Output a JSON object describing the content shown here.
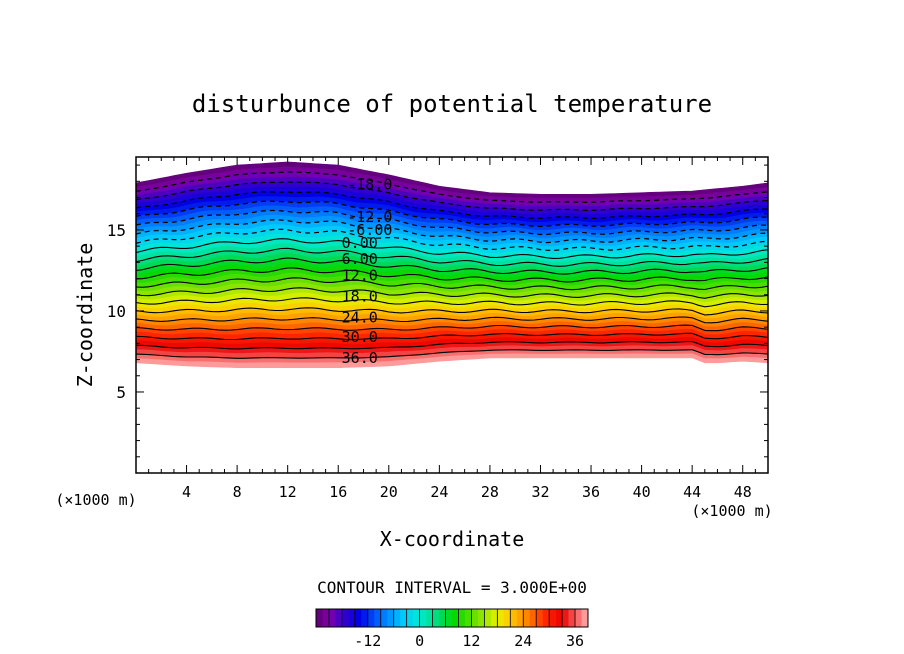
{
  "chart_data": {
    "type": "heatmap",
    "title": "disturbunce of potential temperature",
    "xlabel": "X-coordinate",
    "ylabel": "Z-coordinate",
    "x_unit_label": "(×1000 m)",
    "y_unit_label": "(×1000 m)",
    "xlim": [
      0,
      50
    ],
    "ylim": [
      0,
      19.5
    ],
    "x_ticks": [
      4,
      8,
      12,
      16,
      20,
      24,
      28,
      32,
      36,
      40,
      44,
      48
    ],
    "y_ticks": [
      5,
      10,
      15
    ],
    "contour_interval_label": "CONTOUR INTERVAL = 3.000E+00",
    "contour_interval": 3.0,
    "value_range": [
      -24,
      39
    ],
    "contour_labels": [
      {
        "text": "-18.0",
        "value": -18,
        "x": 18.5,
        "z": 17.8
      },
      {
        "text": "-12.0",
        "value": -12,
        "x": 18.5,
        "z": 15.8
      },
      {
        "text": "-6.00",
        "value": -6,
        "x": 18.5,
        "z": 15.0
      },
      {
        "text": "0.00",
        "value": 0,
        "x": 17.7,
        "z": 14.2
      },
      {
        "text": "6.00",
        "value": 6,
        "x": 17.7,
        "z": 13.2
      },
      {
        "text": "12.0",
        "value": 12,
        "x": 17.7,
        "z": 12.2
      },
      {
        "text": "18.0",
        "value": 18,
        "x": 17.7,
        "z": 10.9
      },
      {
        "text": "24.0",
        "value": 24,
        "x": 17.7,
        "z": 9.6
      },
      {
        "text": "30.0",
        "value": 30,
        "x": 17.7,
        "z": 8.4
      },
      {
        "text": "36.0",
        "value": 36,
        "x": 17.7,
        "z": 7.1
      }
    ],
    "top_boundary": {
      "x": [
        0,
        4,
        8,
        12,
        16,
        20,
        24,
        28,
        32,
        36,
        40,
        44,
        48,
        50
      ],
      "z": [
        17.9,
        18.5,
        19.0,
        19.2,
        19.0,
        18.4,
        17.7,
        17.3,
        17.2,
        17.2,
        17.3,
        17.4,
        17.7,
        17.9
      ]
    },
    "bottom_boundary": {
      "x": [
        0,
        4,
        8,
        12,
        16,
        20,
        24,
        28,
        32,
        36,
        40,
        44,
        45,
        46,
        48,
        50
      ],
      "z": [
        6.8,
        6.6,
        6.5,
        6.5,
        6.5,
        6.6,
        6.9,
        7.1,
        7.1,
        7.1,
        7.1,
        7.1,
        6.8,
        6.8,
        6.9,
        6.8
      ]
    },
    "colorbar": {
      "tick_labels": [
        "-12",
        "0",
        "12",
        "24",
        "36"
      ],
      "tick_values": [
        -12,
        0,
        12,
        24,
        36
      ],
      "range": [
        -24,
        39
      ]
    }
  }
}
